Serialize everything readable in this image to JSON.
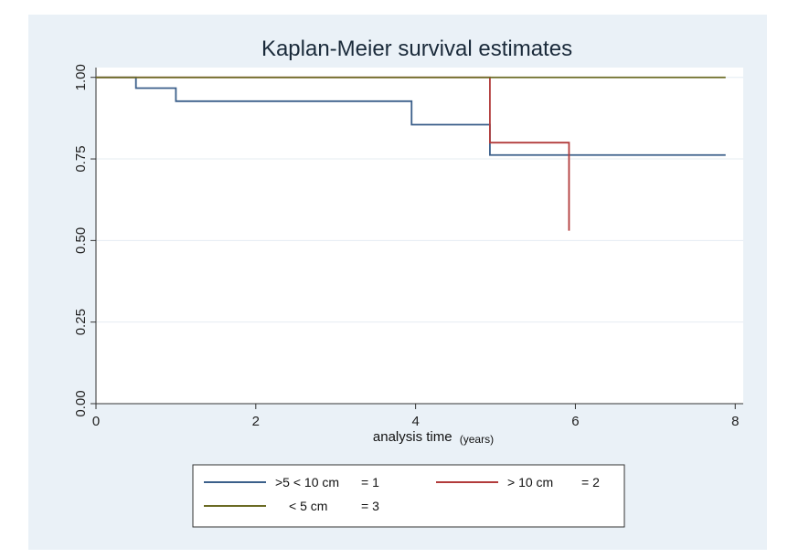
{
  "chart_data": {
    "type": "line",
    "step": true,
    "title": "Kaplan-Meier survival estimates",
    "xlabel": "analysis time",
    "xlabel_unit": "(years)",
    "ylabel": "",
    "xlim": [
      0,
      8.1
    ],
    "ylim": [
      0,
      1.03
    ],
    "x_ticks": [
      "0",
      "2",
      "4",
      "6",
      "8"
    ],
    "y_ticks": [
      "0.00",
      "0.25",
      "0.50",
      "0.75",
      "1.00"
    ],
    "y_grid": true,
    "legend_position": "bottom",
    "series": [
      {
        "name": ">5 < 10 cm",
        "code": "= 1",
        "color": "#3b5f8a",
        "points": [
          [
            0,
            1.0
          ],
          [
            0.5,
            0.967
          ],
          [
            1.0,
            0.927
          ],
          [
            3.95,
            0.855
          ],
          [
            4.93,
            0.762
          ],
          [
            7.88,
            0.762
          ]
        ]
      },
      {
        "name": "> 10 cm",
        "code": "= 2",
        "color": "#b23b3b",
        "points": [
          [
            0,
            1.0
          ],
          [
            4.93,
            0.8
          ],
          [
            5.92,
            0.53
          ]
        ]
      },
      {
        "name": "< 5 cm",
        "code": "= 3",
        "color": "#6b6b24",
        "points": [
          [
            0,
            1.0
          ],
          [
            7.88,
            1.0
          ]
        ]
      }
    ]
  }
}
